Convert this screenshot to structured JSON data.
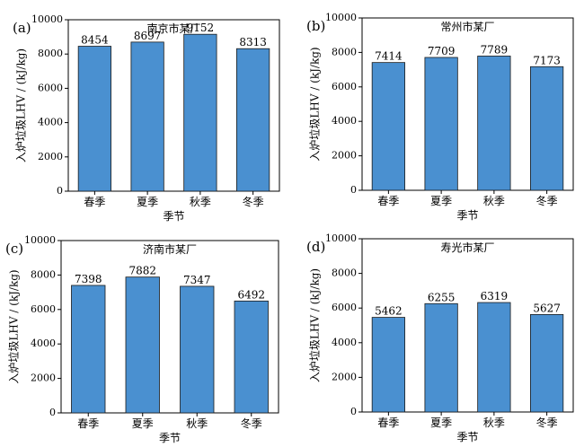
{
  "chart_data": [
    {
      "panel": "(a)",
      "type": "bar",
      "title": "南京市某厂",
      "xlabel": "季节",
      "ylabel": "入炉垃圾LHV / (kJ/kg)",
      "categories": [
        "春季",
        "夏季",
        "秋季",
        "冬季"
      ],
      "values": [
        8454,
        8697,
        9152,
        8313
      ],
      "ylim": [
        0,
        10000
      ],
      "yticks": [
        0,
        2000,
        4000,
        6000,
        8000,
        10000
      ],
      "bar_color": "#4a90d0"
    },
    {
      "panel": "(b)",
      "type": "bar",
      "title": "常州市某厂",
      "xlabel": "季节",
      "ylabel": "入炉垃圾LHV / (kJ/kg)",
      "categories": [
        "春季",
        "夏季",
        "秋季",
        "冬季"
      ],
      "values": [
        7414,
        7709,
        7789,
        7173
      ],
      "ylim": [
        0,
        10000
      ],
      "yticks": [
        0,
        2000,
        4000,
        6000,
        8000,
        10000
      ],
      "bar_color": "#4a90d0"
    },
    {
      "panel": "(c)",
      "type": "bar",
      "title": "济南市某厂",
      "xlabel": "季节",
      "ylabel": "入炉垃圾LHV / (kJ/kg)",
      "categories": [
        "春季",
        "夏季",
        "秋季",
        "冬季"
      ],
      "values": [
        7398,
        7882,
        7347,
        6492
      ],
      "ylim": [
        0,
        10000
      ],
      "yticks": [
        0,
        2000,
        4000,
        6000,
        8000,
        10000
      ],
      "bar_color": "#4a90d0"
    },
    {
      "panel": "(d)",
      "type": "bar",
      "title": "寿光市某厂",
      "xlabel": "季节",
      "ylabel": "入炉垃圾LHV / (kJ/kg)",
      "categories": [
        "春季",
        "夏季",
        "秋季",
        "冬季"
      ],
      "values": [
        5462,
        6255,
        6319,
        5627
      ],
      "ylim": [
        0,
        10000
      ],
      "yticks": [
        0,
        2000,
        4000,
        6000,
        8000,
        10000
      ],
      "bar_color": "#4a90d0"
    }
  ]
}
